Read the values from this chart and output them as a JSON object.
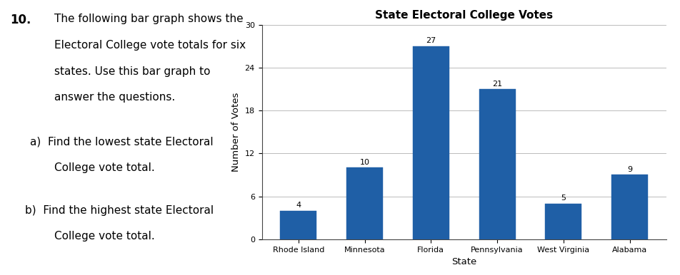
{
  "title": "State Electoral College Votes",
  "xlabel": "State",
  "ylabel": "Number of Votes",
  "categories": [
    "Rhode Island",
    "Minnesota",
    "Florida",
    "Pennsylvania",
    "West Virginia",
    "Alabama"
  ],
  "values": [
    4,
    10,
    27,
    21,
    5,
    9
  ],
  "bar_color": "#1f5fa6",
  "ylim": [
    0,
    30
  ],
  "yticks": [
    0,
    6,
    12,
    18,
    24,
    30
  ],
  "title_fontsize": 11,
  "axis_label_fontsize": 9.5,
  "tick_fontsize": 8,
  "value_label_fontsize": 8,
  "background_color": "#ffffff",
  "grid_color": "#bbbbbb",
  "text_num": "10.",
  "text_body": [
    "The following bar graph shows the",
    "Electoral College vote totals for six",
    "states. Use this bar graph to",
    "answer the questions."
  ],
  "text_a": [
    "a) Find the lowest state Electoral",
    "       College vote total."
  ],
  "text_b": [
    "b) Find the highest state Electoral",
    "       College vote total."
  ],
  "text_fontsize": 11,
  "num_fontsize": 12
}
